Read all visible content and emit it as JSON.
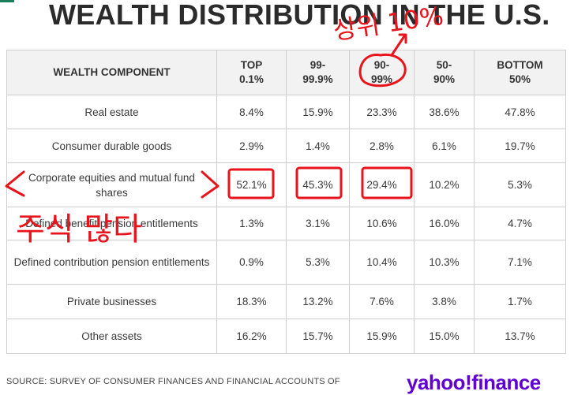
{
  "title": "WEALTH DISTRIBUTION IN THE U.S.",
  "table": {
    "headers": [
      "WEALTH COMPONENT",
      "TOP\n0.1%",
      "99-\n99.9%",
      "90-\n99%",
      "50-\n90%",
      "BOTTOM\n50%"
    ],
    "header_lines": [
      [
        "WEALTH COMPONENT"
      ],
      [
        "TOP",
        "0.1%"
      ],
      [
        "99-",
        "99.9%"
      ],
      [
        "90-",
        "99%"
      ],
      [
        "50-",
        "90%"
      ],
      [
        "BOTTOM",
        "50%"
      ]
    ],
    "rows": [
      [
        "Real estate",
        "8.4%",
        "15.9%",
        "23.3%",
        "38.6%",
        "47.8%"
      ],
      [
        "Consumer durable goods",
        "2.9%",
        "1.4%",
        "2.8%",
        "6.1%",
        "19.7%"
      ],
      [
        "Corporate equities and mutual fund shares",
        "52.1%",
        "45.3%",
        "29.4%",
        "10.2%",
        "5.3%"
      ],
      [
        "Defined benefit pension entitlements",
        "1.3%",
        "3.1%",
        "10.6%",
        "16.0%",
        "4.7%"
      ],
      [
        "Defined contribution pension entitlements",
        "0.9%",
        "5.3%",
        "10.4%",
        "10.3%",
        "7.1%"
      ],
      [
        "Private businesses",
        "18.3%",
        "13.2%",
        "7.6%",
        "3.8%",
        "1.7%"
      ],
      [
        "Other assets",
        "16.2%",
        "15.7%",
        "15.9%",
        "15.0%",
        "13.7%"
      ]
    ]
  },
  "source": "SOURCE: SURVEY OF CONSUMER FINANCES AND FINANCIAL ACCOUNTS OF",
  "logo": "yahoo!finance",
  "annotations": {
    "top_note": "상위 10%",
    "side_note": "주식 많다",
    "ink_color": "#e8131b"
  }
}
